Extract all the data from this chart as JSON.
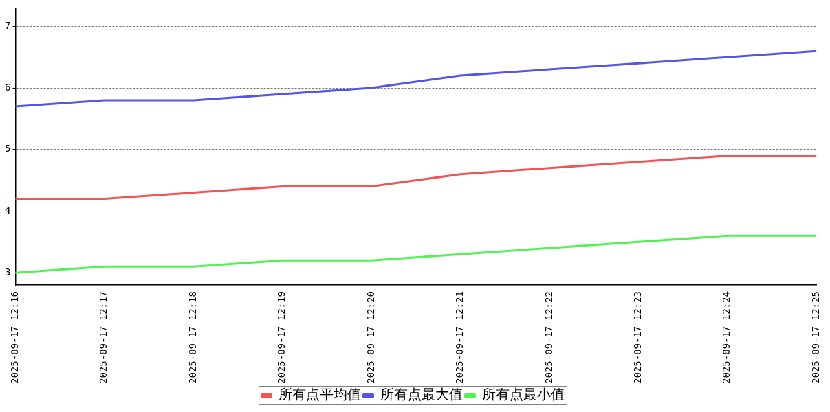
{
  "chart_data": {
    "type": "line",
    "categories": [
      "2025-09-17 12:16",
      "2025-09-17 12:17",
      "2025-09-17 12:18",
      "2025-09-17 12:19",
      "2025-09-17 12:20",
      "2025-09-17 12:21",
      "2025-09-17 12:22",
      "2025-09-17 12:23",
      "2025-09-17 12:24",
      "2025-09-17 12:25"
    ],
    "series": [
      {
        "name": "所有点平均值",
        "color": "#f05454",
        "values": [
          4.2,
          4.2,
          4.3,
          4.4,
          4.4,
          4.6,
          4.7,
          4.8,
          4.9,
          4.9
        ]
      },
      {
        "name": "所有点最大值",
        "color": "#5454e6",
        "values": [
          5.7,
          5.8,
          5.8,
          5.9,
          6.0,
          6.2,
          6.3,
          6.4,
          6.5,
          6.6
        ]
      },
      {
        "name": "所有点最小值",
        "color": "#54f054",
        "values": [
          3.0,
          3.1,
          3.1,
          3.2,
          3.2,
          3.3,
          3.4,
          3.5,
          3.6,
          3.6
        ]
      }
    ],
    "ylim": [
      2.8,
      7.3
    ],
    "yticks": [
      3,
      4,
      5,
      6,
      7
    ],
    "grid": "y",
    "legend": "bottom",
    "marker": "none",
    "line_style": "solid"
  }
}
